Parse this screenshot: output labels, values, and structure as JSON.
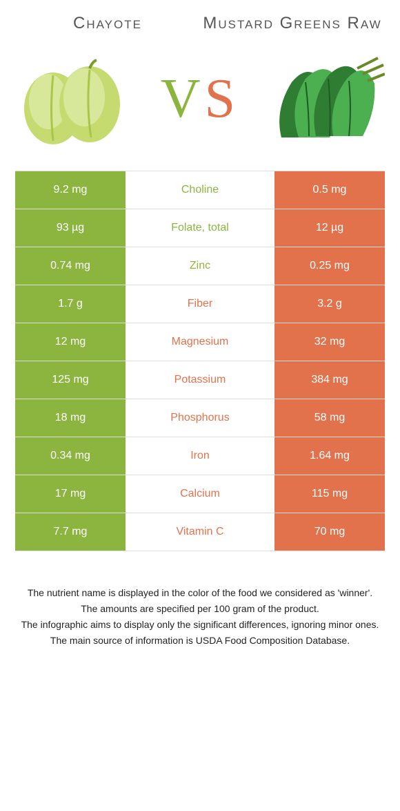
{
  "colors": {
    "green": "#8bb53e",
    "orange": "#e2724c",
    "leaf_dark": "#2e7d32",
    "leaf_mid": "#4caf50",
    "chayote_light": "#d8e89a",
    "chayote_mid": "#c5db6f",
    "chayote_dark": "#a8c648"
  },
  "left_title": "Chayote",
  "right_title": "Mustard Greens Raw",
  "vs_letters": {
    "left": "V",
    "right": "S"
  },
  "rows": [
    {
      "left": "9.2 mg",
      "label": "Choline",
      "right": "0.5 mg",
      "winner": "left"
    },
    {
      "left": "93 µg",
      "label": "Folate, total",
      "right": "12 µg",
      "winner": "left"
    },
    {
      "left": "0.74 mg",
      "label": "Zinc",
      "right": "0.25 mg",
      "winner": "left"
    },
    {
      "left": "1.7 g",
      "label": "Fiber",
      "right": "3.2 g",
      "winner": "right"
    },
    {
      "left": "12 mg",
      "label": "Magnesium",
      "right": "32 mg",
      "winner": "right"
    },
    {
      "left": "125 mg",
      "label": "Potassium",
      "right": "384 mg",
      "winner": "right"
    },
    {
      "left": "18 mg",
      "label": "Phosphorus",
      "right": "58 mg",
      "winner": "right"
    },
    {
      "left": "0.34 mg",
      "label": "Iron",
      "right": "1.64 mg",
      "winner": "right"
    },
    {
      "left": "17 mg",
      "label": "Calcium",
      "right": "115 mg",
      "winner": "right"
    },
    {
      "left": "7.7 mg",
      "label": "Vitamin C",
      "right": "70 mg",
      "winner": "right"
    }
  ],
  "footnotes": [
    "The nutrient name is displayed in the color of the food we considered as 'winner'.",
    "The amounts are specified per 100 gram of the product.",
    "The infographic aims to display only the significant differences, ignoring minor ones.",
    "The main source of information is USDA Food Composition Database."
  ]
}
